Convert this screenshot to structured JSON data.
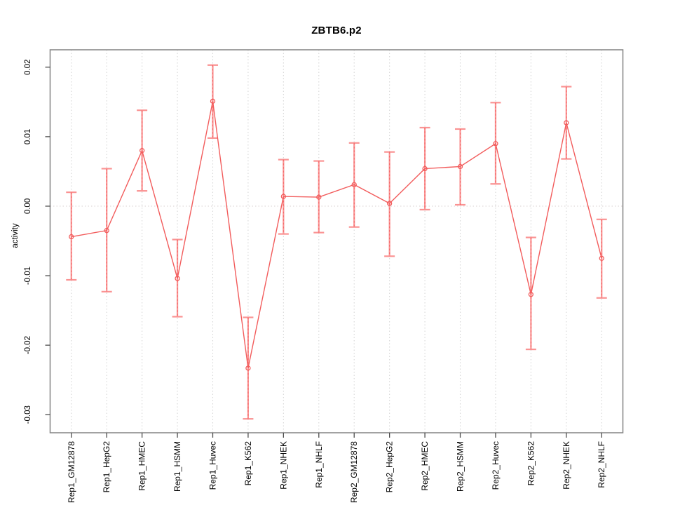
{
  "chart_data": {
    "type": "line",
    "subtype": "points-with-error-bars",
    "title": "ZBTB6.p2",
    "xlabel": "",
    "ylabel": "activity",
    "categories": [
      "Rep1_GM12878",
      "Rep1_HepG2",
      "Rep1_HMEC",
      "Rep1_HSMM",
      "Rep1_Huvec",
      "Rep1_K562",
      "Rep1_NHEK",
      "Rep1_NHLF",
      "Rep2_GM12878",
      "Rep2_HepG2",
      "Rep2_HMEC",
      "Rep2_HSMM",
      "Rep2_Huvec",
      "Rep2_K562",
      "Rep2_NHEK",
      "Rep2_NHLF"
    ],
    "series": [
      {
        "name": "activity",
        "values": [
          -0.0044,
          -0.0035,
          0.008,
          -0.0104,
          0.0151,
          -0.0233,
          0.0014,
          0.0013,
          0.0031,
          0.0004,
          0.0054,
          0.0057,
          0.009,
          -0.0127,
          0.012,
          -0.0075
        ],
        "err_hi": [
          0.002,
          0.0054,
          0.0138,
          -0.0048,
          0.0203,
          -0.016,
          0.0067,
          0.0065,
          0.0091,
          0.0078,
          0.0113,
          0.0111,
          0.0149,
          -0.0045,
          0.0172,
          -0.0019
        ],
        "err_lo": [
          -0.0106,
          -0.0123,
          0.0022,
          -0.0159,
          0.0098,
          -0.0306,
          -0.004,
          -0.0038,
          -0.003,
          -0.0072,
          -0.0005,
          0.0002,
          0.0032,
          -0.0206,
          0.0068,
          -0.0132
        ]
      }
    ],
    "ylim": [
      -0.0326,
      0.0225
    ],
    "yticks": [
      0.02,
      0.01,
      0,
      -0.01,
      -0.02,
      -0.03
    ],
    "ytick_labels": [
      "0.02",
      "0.01",
      "0.00",
      "-0.01",
      "-0.02",
      "-0.03"
    ],
    "grid": "vertical dotted at each category, dotted horizontal line at zero",
    "legend": "none",
    "colors": {
      "series": "#f25c5c",
      "error_bar": "#fa9393",
      "grid": "#d6d6d6",
      "zero_line": "#d9d2d2",
      "axis_box": "#8a8a8a",
      "tick": "#4d4d4d",
      "text": "#000000",
      "background": "#ffffff"
    }
  }
}
